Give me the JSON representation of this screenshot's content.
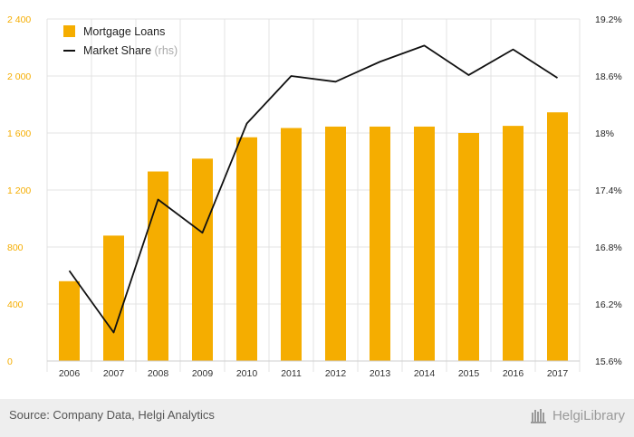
{
  "chart_data": {
    "type": "bar+line",
    "categories": [
      "2006",
      "2007",
      "2008",
      "2009",
      "2010",
      "2011",
      "2012",
      "2013",
      "2014",
      "2015",
      "2016",
      "2017"
    ],
    "series": [
      {
        "name": "Mortgage Loans",
        "type": "bar",
        "axis": "left",
        "color": "#f5ad00",
        "values": [
          560,
          880,
          1330,
          1420,
          1570,
          1635,
          1645,
          1645,
          1645,
          1600,
          1650,
          1745
        ]
      },
      {
        "name": "Market Share",
        "legend_suffix": "(rhs)",
        "type": "line",
        "axis": "right",
        "color": "#111111",
        "values": [
          16.55,
          15.9,
          17.3,
          16.95,
          18.1,
          18.6,
          18.54,
          18.75,
          18.92,
          18.61,
          18.88,
          18.58
        ]
      }
    ],
    "y_left": {
      "ticks": [
        0,
        400,
        800,
        1200,
        1600,
        2000,
        2400
      ],
      "tick_labels": [
        "0",
        "400",
        "800",
        "1 200",
        "1 600",
        "2 000",
        "2 400"
      ],
      "range": [
        0,
        2400
      ],
      "label_color": "#f5ad00"
    },
    "y_right": {
      "ticks": [
        15.6,
        16.2,
        16.8,
        17.4,
        18.0,
        18.6,
        19.2
      ],
      "tick_labels": [
        "15.6%",
        "16.2%",
        "16.8%",
        "17.4%",
        "18%",
        "18.6%",
        "19.2%"
      ],
      "range": [
        15.6,
        19.2
      ],
      "label_color": "#222222"
    },
    "grid": true,
    "legend_position": "top-left"
  },
  "footer": {
    "source": "Source: Company Data, Helgi Analytics",
    "brand": "HelgiLibrary"
  }
}
